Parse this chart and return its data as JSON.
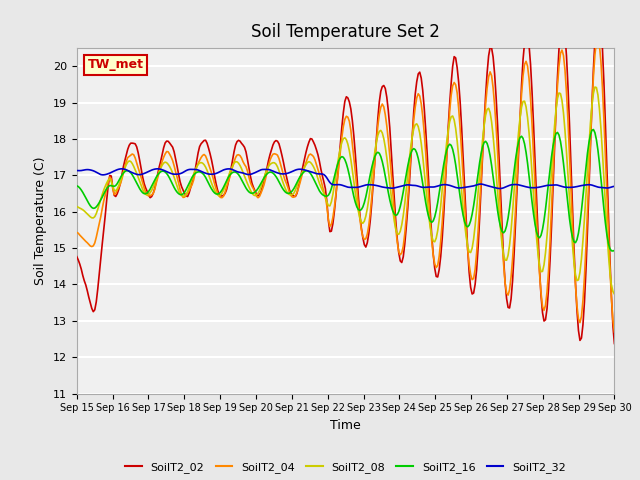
{
  "title": "Soil Temperature Set 2",
  "xlabel": "Time",
  "ylabel": "Soil Temperature (C)",
  "ylim": [
    11.0,
    20.5
  ],
  "yticks": [
    11.0,
    12.0,
    13.0,
    14.0,
    15.0,
    16.0,
    17.0,
    18.0,
    19.0,
    20.0
  ],
  "bg_color": "#e8e8e8",
  "plot_bg_color": "#f0f0f0",
  "grid_color": "white",
  "annotation_text": "TW_met",
  "annotation_bg": "#ffffcc",
  "annotation_border": "#cc0000",
  "colors": {
    "SoilT2_02": "#cc0000",
    "SoilT2_04": "#ff8800",
    "SoilT2_08": "#cccc00",
    "SoilT2_16": "#00cc00",
    "SoilT2_32": "#0000cc"
  },
  "legend_entries": [
    "SoilT2_02",
    "SoilT2_04",
    "SoilT2_08",
    "SoilT2_16",
    "SoilT2_32"
  ],
  "x_tick_labels": [
    "Sep 15",
    "Sep 16",
    "Sep 17",
    "Sep 18",
    "Sep 19",
    "Sep 20",
    "Sep 21",
    "Sep 22",
    "Sep 23",
    "Sep 24",
    "Sep 25",
    "Sep 26",
    "Sep 27",
    "Sep 28",
    "Sep 29",
    "Sep 30"
  ],
  "n_points": 360
}
